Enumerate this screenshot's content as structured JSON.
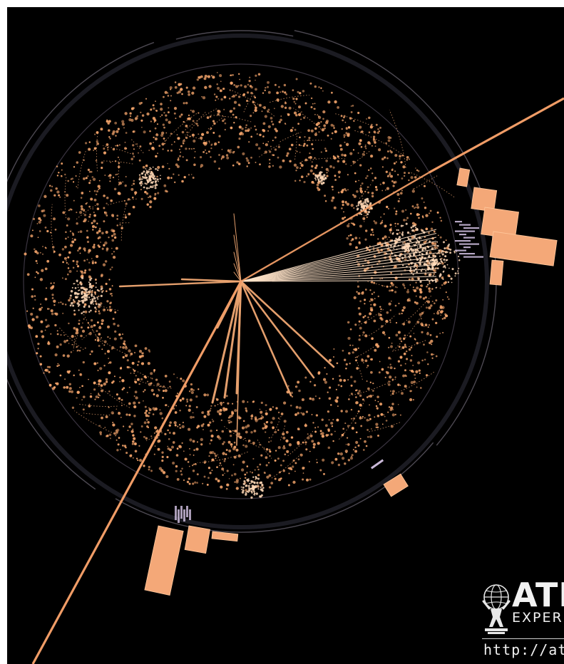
{
  "logo": {
    "word": "ATL",
    "sub": "EXPERI",
    "url": "http://at"
  },
  "colors": {
    "background": "#000000",
    "frame": "#ffffff",
    "hit": "#f2a36a",
    "track": "#f0a772",
    "calo": "#f4a878",
    "calo_edge": "#ffc79b",
    "muon": "#f09c66",
    "lilac": "#c9b8d8",
    "ring": "#3a3440",
    "logo": "#f2f2f2"
  }
}
